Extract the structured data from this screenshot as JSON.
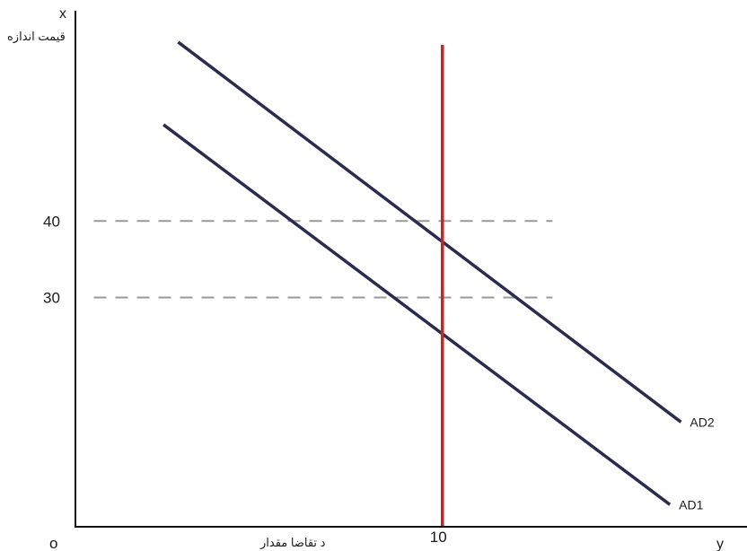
{
  "chart_data": {
    "type": "line",
    "title": "",
    "x_axis": {
      "name": "y",
      "label": "د تقاضا مقدار",
      "origin_label": "o",
      "ticks": [
        10
      ]
    },
    "y_axis": {
      "name": "x",
      "label": "قیمت اندازه",
      "ticks": [
        30,
        40
      ]
    },
    "series": [
      {
        "name": "AD1",
        "color": "#2b2b4f",
        "points": [
          [
            2.4,
            52.6
          ],
          [
            16.2,
            2.9
          ]
        ]
      },
      {
        "name": "AD2",
        "color": "#2b2b4f",
        "points": [
          [
            2.8,
            63.4
          ],
          [
            16.5,
            13.7
          ]
        ]
      }
    ],
    "vertical_line": {
      "x": 10,
      "color": "#cc2222"
    },
    "reference_lines": {
      "y_values": [
        30,
        40
      ],
      "x_extent": [
        0.5,
        13.0
      ],
      "color": "#999999",
      "style": "dashed"
    },
    "xlim": [
      0,
      18.3
    ],
    "ylim": [
      0,
      67.5
    ],
    "grid": false,
    "legend": "inline-labels"
  }
}
